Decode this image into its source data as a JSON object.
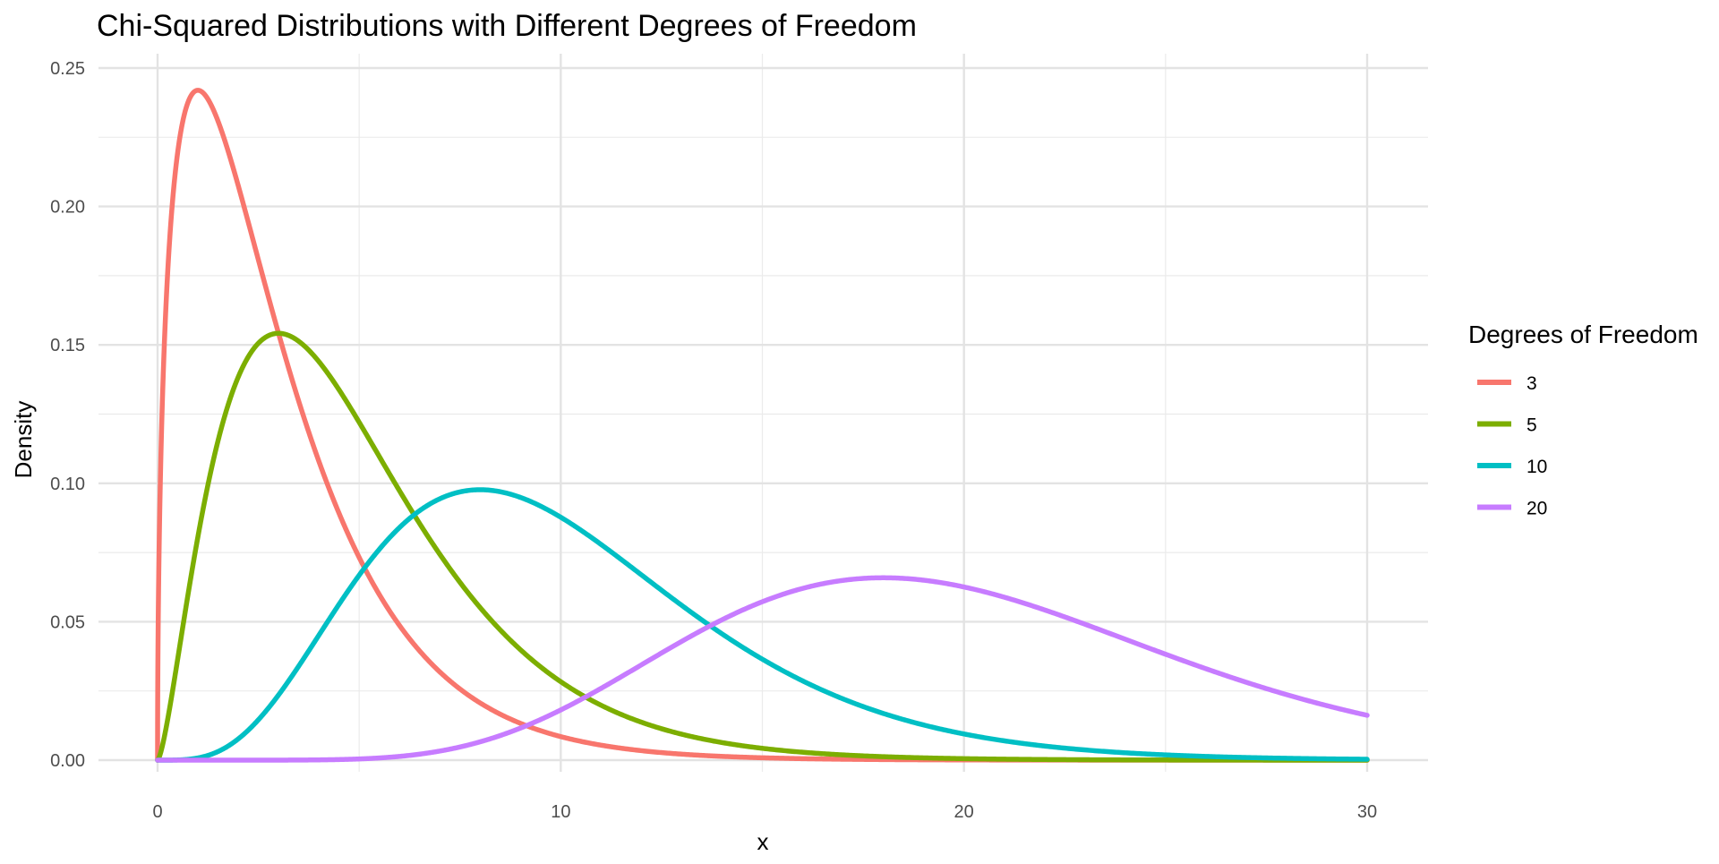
{
  "chart_data": {
    "type": "line",
    "title": "Chi-Squared Distributions with Different Degrees of Freedom",
    "xlabel": "x",
    "ylabel": "Density",
    "xlim": [
      0,
      30
    ],
    "ylim": [
      0,
      0.25
    ],
    "x_ticks": [
      0,
      10,
      20,
      30
    ],
    "x_tick_labels": [
      "0",
      "10",
      "20",
      "30"
    ],
    "y_ticks": [
      0,
      0.05,
      0.1,
      0.15,
      0.2,
      0.25
    ],
    "y_tick_labels": [
      "0.00",
      "0.05",
      "0.10",
      "0.15",
      "0.20",
      "0.25"
    ],
    "grid": true,
    "legend": {
      "title": "Degrees of Freedom",
      "position": "right"
    },
    "series": [
      {
        "name": "3",
        "df": 3,
        "color": "#F8766D"
      },
      {
        "name": "5",
        "df": 5,
        "color": "#7CAE00"
      },
      {
        "name": "10",
        "df": 10,
        "color": "#00BFC4"
      },
      {
        "name": "20",
        "df": 20,
        "color": "#C77CFF"
      }
    ]
  }
}
